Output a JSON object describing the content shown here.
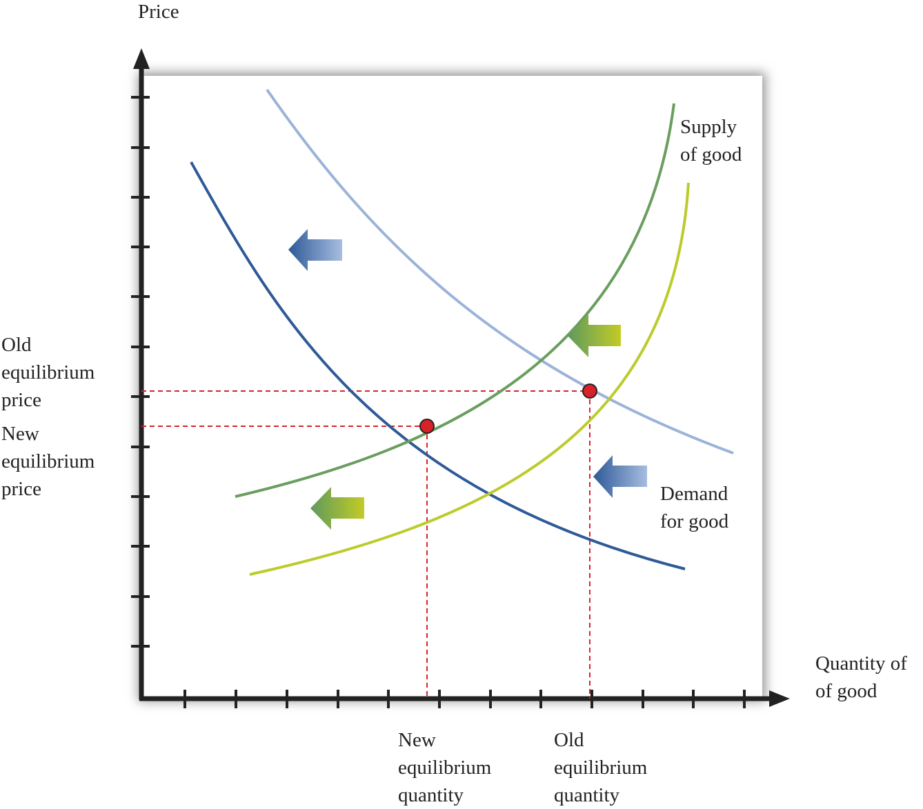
{
  "axes": {
    "y_label": "Price",
    "x_label_line1": "Quantity of",
    "x_label_line2": "of good"
  },
  "price_labels": {
    "old": [
      "Old",
      "equilibrium",
      "price"
    ],
    "new": [
      "New",
      "equilibrium",
      "price"
    ]
  },
  "quantity_labels": {
    "new": [
      "New",
      "equilibrium",
      "quantity"
    ],
    "old": [
      "Old",
      "equilibrium",
      "quantity"
    ]
  },
  "curves": {
    "supply": [
      "Supply",
      "of good"
    ],
    "demand": [
      "Demand",
      "for good"
    ]
  },
  "colors": {
    "old_demand": "#9bb3d8",
    "new_demand": "#2e5a98",
    "new_supply": "#6a9e5e",
    "old_supply": "#bccb2c",
    "equilibrium": "#d8222a",
    "guide": "#d8222a"
  }
}
